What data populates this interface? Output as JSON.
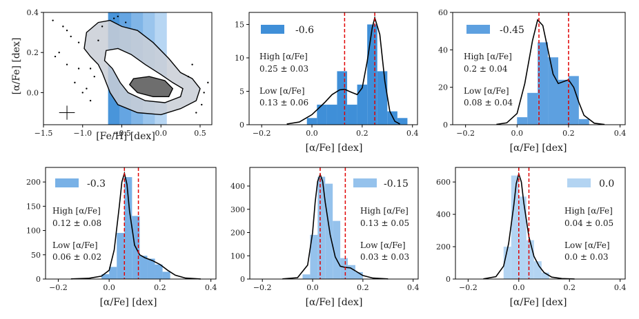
{
  "figure": {
    "xlabel_fe_h": "[Fe/H] [dex]",
    "ylabel_alpha": "[α/Fe] [dex]",
    "xlabel_alpha": "[α/Fe] [dex]"
  },
  "colors": {
    "bin_strip_fills": [
      "#3f8fd8",
      "#5da0e0",
      "#79b1e6",
      "#95c2ec",
      "#b3d4f2"
    ],
    "hist": [
      "#3f8fd8",
      "#5da0e0",
      "#79b1e6",
      "#95c2ec",
      "#b3d4f2"
    ],
    "kde": "#000000",
    "peak_lines": "#e00000",
    "scatter": "#000000"
  },
  "chart_data": [
    {
      "type": "scatter",
      "title": "",
      "xlabel": "[Fe/H] [dex]",
      "ylabel": "[α/Fe] [dex]",
      "xlim": [
        -1.5,
        0.65
      ],
      "ylim": [
        -0.16,
        0.4
      ],
      "xticks": [
        -1.5,
        -1.0,
        -0.5,
        0.0,
        0.5
      ],
      "xtick_labels": [
        "−1.5",
        "−1.0",
        "−0.5",
        "0.0",
        "0.5"
      ],
      "yticks": [
        0.0,
        0.2,
        0.4
      ],
      "ytick_labels": [
        "0.0",
        "0.2",
        "0.4"
      ],
      "bin_edges": [
        -0.675,
        -0.525,
        -0.375,
        -0.225,
        -0.075,
        0.075
      ],
      "error_bar": {
        "x": -1.2,
        "y": -0.1,
        "xerr": 0.1,
        "yerr": 0.035
      },
      "outer_contour": [
        [
          -0.65,
          0.36
        ],
        [
          -0.8,
          0.35
        ],
        [
          -0.95,
          0.3
        ],
        [
          -0.98,
          0.22
        ],
        [
          -0.9,
          0.18
        ],
        [
          -0.8,
          0.14
        ],
        [
          -0.75,
          0.1
        ],
        [
          -0.65,
          0.0
        ],
        [
          -0.55,
          -0.06
        ],
        [
          -0.3,
          -0.1
        ],
        [
          0.0,
          -0.11
        ],
        [
          0.25,
          -0.08
        ],
        [
          0.45,
          -0.04
        ],
        [
          0.5,
          0.02
        ],
        [
          0.4,
          0.07
        ],
        [
          0.25,
          0.1
        ],
        [
          0.1,
          0.17
        ],
        [
          -0.1,
          0.25
        ],
        [
          -0.3,
          0.31
        ],
        [
          -0.5,
          0.33
        ]
      ],
      "inner_contour": [
        [
          -0.55,
          0.22
        ],
        [
          -0.7,
          0.21
        ],
        [
          -0.72,
          0.16
        ],
        [
          -0.62,
          0.12
        ],
        [
          -0.52,
          0.05
        ],
        [
          -0.42,
          0.0
        ],
        [
          -0.2,
          -0.04
        ],
        [
          0.05,
          -0.05
        ],
        [
          0.25,
          -0.02
        ],
        [
          0.28,
          0.02
        ],
        [
          0.15,
          0.05
        ],
        [
          0.0,
          0.09
        ],
        [
          -0.2,
          0.14
        ],
        [
          -0.38,
          0.19
        ]
      ],
      "core_contour": [
        [
          -0.35,
          0.07
        ],
        [
          -0.4,
          0.04
        ],
        [
          -0.3,
          0.0
        ],
        [
          -0.1,
          -0.02
        ],
        [
          0.1,
          -0.02
        ],
        [
          0.15,
          0.02
        ],
        [
          0.05,
          0.06
        ],
        [
          -0.15,
          0.08
        ]
      ],
      "outlier_points": [
        [
          -1.25,
          0.33
        ],
        [
          -1.2,
          0.31
        ],
        [
          -1.15,
          0.28
        ],
        [
          -1.05,
          0.25
        ],
        [
          -1.3,
          0.2
        ],
        [
          -1.35,
          0.18
        ],
        [
          -1.2,
          0.14
        ],
        [
          -1.1,
          0.05
        ],
        [
          -0.9,
          0.12
        ],
        [
          -0.85,
          0.08
        ],
        [
          -0.95,
          0.02
        ],
        [
          -1.0,
          0.0
        ],
        [
          -0.8,
          0.26
        ],
        [
          -0.75,
          0.33
        ],
        [
          0.55,
          0.0
        ],
        [
          0.52,
          -0.06
        ],
        [
          0.4,
          0.14
        ],
        [
          0.35,
          0.08
        ],
        [
          0.6,
          0.05
        ],
        [
          -0.55,
          0.38
        ],
        [
          -0.6,
          0.37
        ],
        [
          -0.45,
          0.35
        ],
        [
          -1.38,
          0.36
        ],
        [
          -1.05,
          0.12
        ],
        [
          -0.9,
          -0.04
        ],
        [
          0.45,
          -0.1
        ]
      ]
    },
    {
      "type": "bar",
      "legend": "-0.6",
      "xlabel": "[α/Fe] [dex]",
      "xlim": [
        -0.25,
        0.42
      ],
      "ylim": [
        0,
        16.8
      ],
      "xticks": [
        -0.2,
        0.0,
        0.2,
        0.4
      ],
      "xtick_labels": [
        "−0.2",
        "0.0",
        "0.2",
        "0.4"
      ],
      "yticks": [
        0,
        5,
        10,
        15
      ],
      "ytick_labels": [
        "0",
        "5",
        "10",
        "15"
      ],
      "bin_edges": [
        -0.02,
        0.02,
        0.06,
        0.1,
        0.14,
        0.18,
        0.22,
        0.26,
        0.3,
        0.34,
        0.38
      ],
      "values": [
        1,
        3,
        3,
        8,
        3,
        6,
        15,
        8,
        2,
        1
      ],
      "kde": {
        "x": [
          -0.1,
          -0.05,
          0.0,
          0.05,
          0.08,
          0.11,
          0.13,
          0.16,
          0.18,
          0.2,
          0.22,
          0.24,
          0.25,
          0.27,
          0.29,
          0.31,
          0.33,
          0.35
        ],
        "y": [
          0.1,
          0.4,
          1.5,
          3.3,
          4.5,
          5.2,
          5.3,
          4.8,
          4.5,
          5.5,
          9.5,
          14.5,
          16.0,
          13.5,
          6.5,
          2.0,
          0.5,
          0.1
        ]
      },
      "peaks": [
        0.13,
        0.25
      ],
      "annotations": {
        "high_label": "High [α/Fe]",
        "high_value": "0.25 ± 0.03",
        "low_label": "Low [α/Fe]",
        "low_value": "0.13 ± 0.06"
      }
    },
    {
      "type": "bar",
      "legend": "-0.45",
      "xlabel": "[α/Fe] [dex]",
      "xlim": [
        -0.25,
        0.42
      ],
      "ylim": [
        0,
        60
      ],
      "xticks": [
        -0.2,
        0.0,
        0.2,
        0.4
      ],
      "xtick_labels": [
        "−0.2",
        "0.0",
        "0.2",
        "0.4"
      ],
      "yticks": [
        0,
        20,
        40,
        60
      ],
      "ytick_labels": [
        "0",
        "20",
        "40",
        "60"
      ],
      "bin_edges": [
        0.0,
        0.04,
        0.08,
        0.12,
        0.16,
        0.2,
        0.24,
        0.28
      ],
      "values": [
        4,
        17,
        44,
        36,
        24,
        26,
        3
      ],
      "kde": {
        "x": [
          -0.08,
          -0.04,
          0.0,
          0.03,
          0.06,
          0.08,
          0.1,
          0.12,
          0.14,
          0.16,
          0.18,
          0.2,
          0.22,
          0.24,
          0.26,
          0.3,
          0.34
        ],
        "y": [
          0.2,
          1.0,
          6.0,
          22.0,
          45.0,
          56.0,
          53.0,
          40.0,
          27.0,
          22.0,
          23.0,
          24.0,
          20.0,
          12.0,
          5.0,
          0.8,
          0.1
        ]
      },
      "peaks": [
        0.085,
        0.2
      ],
      "annotations": {
        "high_label": "High [α/Fe]",
        "high_value": "0.2 ± 0.04",
        "low_label": "Low [α/Fe]",
        "low_value": "0.08 ± 0.04"
      }
    },
    {
      "type": "bar",
      "legend": "-0.3",
      "xlabel": "[α/Fe] [dex]",
      "xlim": [
        -0.25,
        0.42
      ],
      "ylim": [
        0,
        230
      ],
      "xticks": [
        -0.2,
        0.0,
        0.2,
        0.4
      ],
      "xtick_labels": [
        "−0.2",
        "0.0",
        "0.2",
        "0.4"
      ],
      "yticks": [
        0,
        50,
        100,
        150,
        200
      ],
      "ytick_labels": [
        "0",
        "50",
        "100",
        "150",
        "200"
      ],
      "bin_edges": [
        -0.03,
        0.0,
        0.03,
        0.06,
        0.09,
        0.12,
        0.15,
        0.18,
        0.21,
        0.24
      ],
      "values": [
        10,
        25,
        95,
        210,
        130,
        48,
        42,
        30,
        15
      ],
      "kde": {
        "x": [
          -0.15,
          -0.08,
          -0.03,
          0.0,
          0.02,
          0.04,
          0.05,
          0.06,
          0.07,
          0.08,
          0.1,
          0.12,
          0.14,
          0.17,
          0.2,
          0.23,
          0.26,
          0.3,
          0.36
        ],
        "y": [
          0.3,
          1.5,
          6.0,
          18.0,
          60.0,
          150.0,
          200.0,
          218.0,
          195.0,
          140.0,
          70.0,
          50.0,
          44.0,
          38.0,
          30.0,
          18.0,
          8.0,
          2.0,
          0.2
        ]
      },
      "peaks": [
        0.06,
        0.115
      ],
      "annotations": {
        "high_label": "High [α/Fe]",
        "high_value": "0.12 ± 0.08",
        "low_label": "Low [α/Fe]",
        "low_value": "0.06 ± 0.02"
      }
    },
    {
      "type": "bar",
      "legend": "-0.15",
      "xlabel": "[α/Fe] [dex]",
      "xlim": [
        -0.25,
        0.42
      ],
      "ylim": [
        0,
        480
      ],
      "xticks": [
        -0.2,
        0.0,
        0.2,
        0.4
      ],
      "xtick_labels": [
        "−0.2",
        "0.0",
        "0.2",
        "0.4"
      ],
      "yticks": [
        0,
        100,
        200,
        300,
        400
      ],
      "ytick_labels": [
        "0",
        "100",
        "200",
        "300",
        "400"
      ],
      "bin_edges": [
        -0.04,
        -0.01,
        0.02,
        0.05,
        0.08,
        0.11,
        0.14,
        0.17,
        0.2
      ],
      "values": [
        20,
        190,
        440,
        410,
        250,
        90,
        60,
        30
      ],
      "kde": {
        "x": [
          -0.12,
          -0.06,
          -0.02,
          0.0,
          0.01,
          0.02,
          0.03,
          0.04,
          0.05,
          0.07,
          0.09,
          0.11,
          0.13,
          0.15,
          0.17,
          0.2,
          0.24,
          0.3
        ],
        "y": [
          0.5,
          6.0,
          60.0,
          200.0,
          330.0,
          420.0,
          450.0,
          420.0,
          330.0,
          190.0,
          95.0,
          55.0,
          50.0,
          48.0,
          35.0,
          15.0,
          4.0,
          0.5
        ]
      },
      "peaks": [
        0.03,
        0.13
      ],
      "annotations": {
        "high_label": "High [α/Fe]",
        "high_value": "0.13 ± 0.05",
        "low_label": "Low [α/Fe]",
        "low_value": "0.03 ± 0.03"
      }
    },
    {
      "type": "bar",
      "legend": "0.0",
      "xlabel": "[α/Fe] [dex]",
      "xlim": [
        -0.25,
        0.42
      ],
      "ylim": [
        0,
        690
      ],
      "xticks": [
        -0.2,
        0.0,
        0.2,
        0.4
      ],
      "xtick_labels": [
        "−0.2",
        "0.0",
        "0.2",
        "0.4"
      ],
      "yticks": [
        0,
        200,
        400,
        600
      ],
      "ytick_labels": [
        "0",
        "200",
        "400",
        "600"
      ],
      "bin_edges": [
        -0.06,
        -0.03,
        0.0,
        0.03,
        0.06,
        0.09,
        0.12
      ],
      "values": [
        200,
        640,
        510,
        240,
        110,
        40
      ],
      "kde": {
        "x": [
          -0.14,
          -0.09,
          -0.06,
          -0.04,
          -0.02,
          -0.01,
          0.0,
          0.01,
          0.02,
          0.04,
          0.06,
          0.08,
          0.1,
          0.13,
          0.17,
          0.22
        ],
        "y": [
          1.0,
          15.0,
          80.0,
          220.0,
          450.0,
          590.0,
          650.0,
          600.0,
          470.0,
          260.0,
          140.0,
          80.0,
          40.0,
          12.0,
          3.0,
          0.3
        ]
      },
      "peaks": [
        0.0,
        0.04
      ],
      "annotations": {
        "high_label": "High [α/Fe]",
        "high_value": "0.04 ± 0.05",
        "low_label": "Low [α/Fe]",
        "low_value": "0.0 ± 0.03"
      }
    }
  ]
}
